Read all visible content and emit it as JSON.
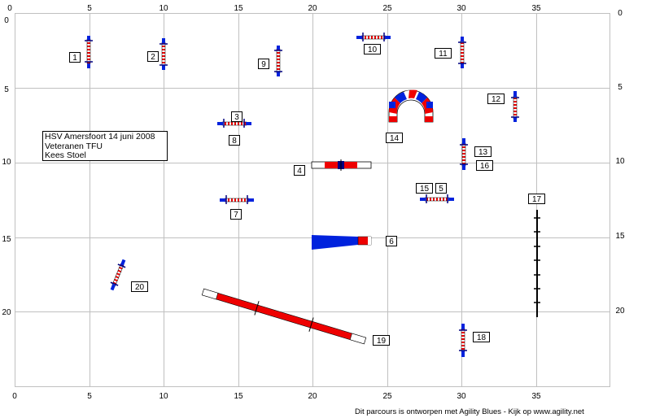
{
  "course": {
    "axis_top": [
      "0",
      "5",
      "10",
      "15",
      "20",
      "25",
      "30",
      "35"
    ],
    "axis_bottom": [
      "0",
      "5",
      "10",
      "15",
      "20",
      "25",
      "30",
      "35"
    ],
    "axis_left": [
      "0",
      "5",
      "10",
      "15",
      "20"
    ],
    "axis_right": [
      "0",
      "5",
      "10",
      "15",
      "20"
    ],
    "obstacle_labels": [
      "1",
      "2",
      "3",
      "4",
      "5",
      "6",
      "7",
      "8",
      "9",
      "10",
      "11",
      "12",
      "13",
      "14",
      "15",
      "16",
      "17",
      "18",
      "19",
      "20"
    ]
  },
  "info_box": {
    "line1": "HSV Amersfoort 14 juni 2008",
    "line2": "Veteranen TFU",
    "line3": "Kees Stoel"
  },
  "footer": "Dit parcours is ontworpen met Agility Blues - Kijk op www.agility.net",
  "colors": {
    "grid": "#c0c0c0",
    "blue": "#0022dd",
    "red": "#ee0000",
    "bar_dark": "#000080"
  }
}
